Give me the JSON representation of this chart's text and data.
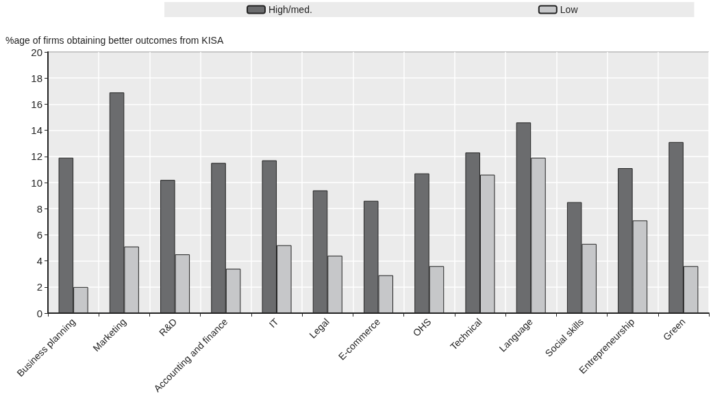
{
  "chart_data": {
    "type": "bar",
    "ylabel": "%age of firms obtaining better outcomes from KISA",
    "categories": [
      "Business planning",
      "Marketing",
      "R&D",
      "Accounting and finance",
      "IT",
      "Legal",
      "E-commerce",
      "OHS",
      "Technical",
      "Language",
      "Social skills",
      "Entrepreneurship",
      "Green"
    ],
    "series": [
      {
        "name": "High/med.",
        "color": "#6b6c6e",
        "values": [
          11.9,
          16.9,
          10.2,
          11.5,
          11.7,
          9.4,
          8.6,
          10.7,
          12.3,
          14.6,
          8.5,
          11.1,
          13.1
        ]
      },
      {
        "name": "Low",
        "color": "#c6c7c9",
        "values": [
          2.0,
          5.1,
          4.5,
          3.4,
          5.2,
          4.4,
          2.9,
          3.6,
          10.6,
          11.9,
          5.3,
          7.1,
          3.6
        ]
      }
    ],
    "ylim": [
      0,
      20
    ],
    "yticks": [
      0,
      2,
      4,
      6,
      8,
      10,
      12,
      14,
      16,
      18,
      20
    ],
    "grid": true,
    "legend": "top"
  }
}
